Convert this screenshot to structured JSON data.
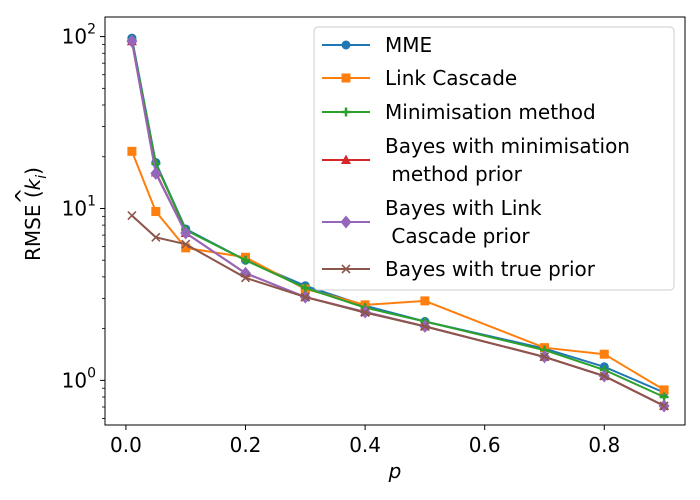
{
  "chart_data": {
    "type": "line",
    "yscale": "log",
    "xlabel": "p",
    "ylabel": "RMSE (k̂_i)",
    "ylabel_prefix": "RMSE (",
    "ylabel_k": "k",
    "ylabel_hat": "^",
    "ylabel_sub": "i",
    "ylabel_suffix": ")",
    "xlim": [
      -0.035,
      0.935
    ],
    "ylim": [
      0.55,
      130
    ],
    "xticks": [
      0.0,
      0.2,
      0.4,
      0.6,
      0.8
    ],
    "xtick_labels": [
      "0.0",
      "0.2",
      "0.4",
      "0.6",
      "0.8"
    ],
    "yticks": [
      1,
      10,
      100
    ],
    "ytick_labels": [
      {
        "base": "10",
        "exp": "0"
      },
      {
        "base": "10",
        "exp": "1"
      },
      {
        "base": "10",
        "exp": "2"
      }
    ],
    "legend_position": "top-right",
    "x": [
      0.01,
      0.05,
      0.1,
      0.2,
      0.3,
      0.4,
      0.5,
      0.7,
      0.8,
      0.9
    ],
    "series": [
      {
        "name": "MME",
        "color": "#1f77b4",
        "marker": "circle",
        "values": [
          98,
          18.5,
          7.6,
          5.0,
          3.55,
          2.72,
          2.2,
          1.53,
          1.2,
          0.85
        ]
      },
      {
        "name": "Link Cascade",
        "color": "#ff7f0e",
        "marker": "square",
        "values": [
          21.5,
          9.6,
          5.9,
          5.2,
          3.4,
          2.75,
          2.9,
          1.55,
          1.42,
          0.88
        ]
      },
      {
        "name": "Minimisation method",
        "color": "#2ca02c",
        "marker": "plus",
        "values": [
          96,
          18.2,
          7.5,
          5.0,
          3.45,
          2.65,
          2.2,
          1.5,
          1.15,
          0.8
        ]
      },
      {
        "name": "Bayes with minimisation\n method prior",
        "color": "#d62728",
        "marker": "triangle",
        "values": [
          94,
          16.2,
          7.2,
          4.2,
          3.05,
          2.5,
          2.06,
          1.37,
          1.06,
          0.71
        ]
      },
      {
        "name": "Bayes with Link\n Cascade prior",
        "color": "#9467bd",
        "marker": "diamond",
        "values": [
          94,
          16.0,
          7.2,
          4.2,
          3.05,
          2.5,
          2.06,
          1.37,
          1.06,
          0.71
        ]
      },
      {
        "name": "Bayes with true prior",
        "color": "#8c564b",
        "marker": "x",
        "values": [
          9.1,
          6.8,
          6.2,
          3.95,
          3.05,
          2.48,
          2.06,
          1.37,
          1.06,
          0.71
        ]
      }
    ]
  }
}
